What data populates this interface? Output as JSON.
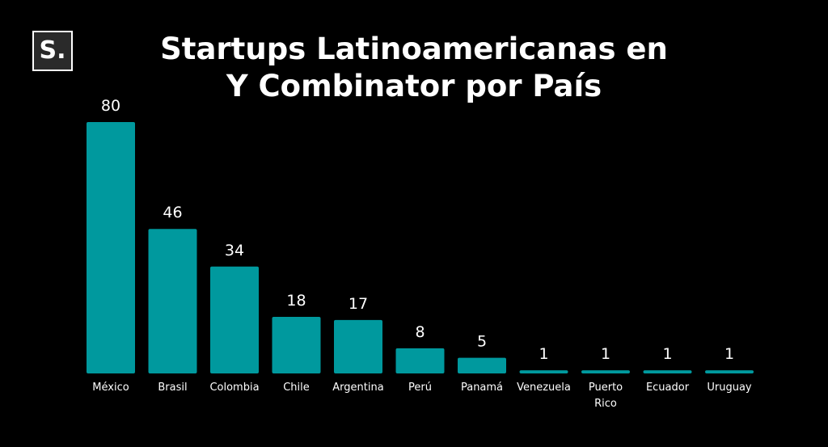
{
  "logo": {
    "text": "S."
  },
  "title_lines": [
    "Startups Latinoamericanas en",
    "Y Combinator por País"
  ],
  "colors": {
    "background": "#000000",
    "bar": "#00999e",
    "text": "#ffffff"
  },
  "chart_data": {
    "type": "bar",
    "title": "Startups Latinoamericanas en Y Combinator por País",
    "categories": [
      "México",
      "Brasil",
      "Colombia",
      "Chile",
      "Argentina",
      "Perú",
      "Panamá",
      "Venezuela",
      "Puerto Rico",
      "Ecuador",
      "Uruguay"
    ],
    "values": [
      80,
      46,
      34,
      18,
      17,
      8,
      5,
      1,
      1,
      1,
      1
    ],
    "xlabel": "",
    "ylabel": "",
    "ylim": [
      0,
      80
    ],
    "grid": false,
    "data_labels": true
  }
}
